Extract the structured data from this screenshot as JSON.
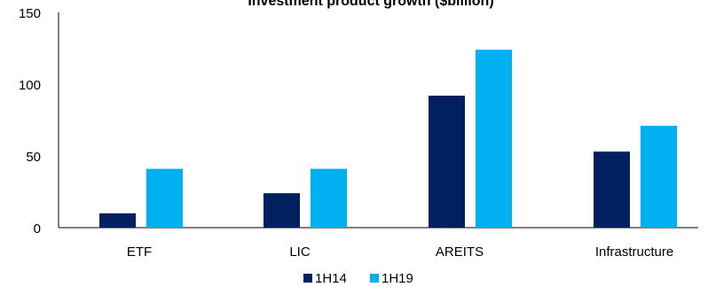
{
  "chart_data": {
    "type": "bar",
    "title": "Investment product growth ($billion)",
    "categories": [
      "ETF",
      "LIC",
      "AREITS",
      "Infrastructure"
    ],
    "series": [
      {
        "name": "1H14",
        "values": [
          10,
          24,
          92,
          53
        ],
        "color": "#002060"
      },
      {
        "name": "1H19",
        "values": [
          41,
          41,
          124,
          71
        ],
        "color": "#00B0F0"
      }
    ],
    "yticks": [
      "0",
      "50",
      "100",
      "150"
    ],
    "ylim": [
      0,
      150
    ],
    "legend_position": "bottom",
    "grid": false
  }
}
